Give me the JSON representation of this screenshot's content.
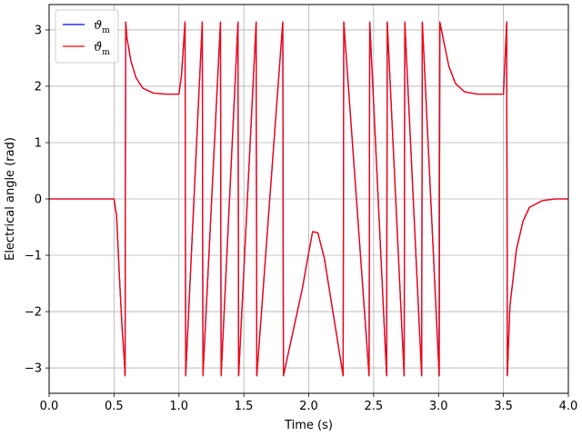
{
  "chart_data": {
    "type": "line",
    "title": "",
    "xlabel": "Time (s)",
    "ylabel": "Electrical angle (rad)",
    "xlim": [
      0,
      4.0
    ],
    "ylim": [
      -3.45,
      3.45
    ],
    "grid": true,
    "legend_position": "top-left",
    "x_ticks": [
      0.0,
      0.5,
      1.0,
      1.5,
      2.0,
      2.5,
      3.0,
      3.5,
      4.0
    ],
    "x_tick_labels": [
      "0.0",
      "0.5",
      "1.0",
      "1.5",
      "2.0",
      "2.5",
      "3.0",
      "3.5",
      "4.0"
    ],
    "y_ticks": [
      -3,
      -2,
      -1,
      0,
      1,
      2,
      3
    ],
    "y_tick_labels": [
      "−3",
      "−2",
      "−1",
      "0",
      "1",
      "2",
      "3"
    ],
    "series": [
      {
        "name": "ϑm",
        "legend_base": "ϑ",
        "legend_sub": "m",
        "color": "#0000ff",
        "x": [
          0.0,
          0.3,
          0.5,
          0.52,
          0.54,
          0.56,
          0.58,
          0.585,
          0.59,
          0.6,
          0.63,
          0.67,
          0.72,
          0.8,
          0.9,
          1.0,
          1.02,
          1.047,
          1.052,
          1.18,
          1.185,
          1.32,
          1.325,
          1.455,
          1.46,
          1.595,
          1.6,
          1.8,
          1.805,
          1.95,
          2.0,
          2.03,
          2.07,
          2.12,
          2.2,
          2.265,
          2.27,
          2.465,
          2.47,
          2.6,
          2.605,
          2.735,
          2.74,
          2.87,
          2.875,
          3.005,
          3.01,
          3.04,
          3.08,
          3.13,
          3.2,
          3.3,
          3.4,
          3.5,
          3.525,
          3.53,
          3.54,
          3.55,
          3.6,
          3.65,
          3.7,
          3.8,
          3.9,
          4.0
        ],
        "y": [
          0.0,
          0.0,
          0.0,
          -0.3,
          -1.3,
          -2.2,
          -2.9,
          -3.14,
          3.14,
          2.85,
          2.45,
          2.15,
          1.97,
          1.88,
          1.86,
          1.86,
          2.2,
          3.14,
          -3.14,
          3.14,
          -3.14,
          3.14,
          -3.14,
          3.14,
          -3.14,
          3.14,
          -3.14,
          3.14,
          -3.14,
          -1.6,
          -0.95,
          -0.58,
          -0.6,
          -1.05,
          -2.2,
          -3.14,
          3.14,
          -3.14,
          3.14,
          -3.14,
          3.14,
          -3.14,
          3.14,
          -3.14,
          3.14,
          -3.14,
          3.14,
          2.8,
          2.35,
          2.05,
          1.9,
          1.86,
          1.86,
          1.86,
          3.14,
          -3.14,
          -2.5,
          -1.9,
          -0.9,
          -0.4,
          -0.15,
          -0.03,
          0.0,
          0.0
        ]
      },
      {
        "name": "ϑ̂m",
        "legend_base": "ϑ̂",
        "legend_sub": "m",
        "color": "#ff0000",
        "x": [
          0.0,
          0.3,
          0.5,
          0.52,
          0.54,
          0.56,
          0.58,
          0.585,
          0.59,
          0.6,
          0.63,
          0.67,
          0.72,
          0.8,
          0.9,
          1.0,
          1.02,
          1.047,
          1.052,
          1.18,
          1.185,
          1.32,
          1.325,
          1.455,
          1.46,
          1.595,
          1.6,
          1.8,
          1.805,
          1.95,
          2.0,
          2.03,
          2.07,
          2.12,
          2.2,
          2.265,
          2.27,
          2.465,
          2.47,
          2.6,
          2.605,
          2.735,
          2.74,
          2.87,
          2.875,
          3.005,
          3.01,
          3.04,
          3.08,
          3.13,
          3.2,
          3.3,
          3.4,
          3.5,
          3.525,
          3.53,
          3.54,
          3.55,
          3.6,
          3.65,
          3.7,
          3.8,
          3.9,
          4.0
        ],
        "y": [
          0.0,
          0.0,
          0.0,
          -0.3,
          -1.3,
          -2.2,
          -2.9,
          -3.14,
          3.14,
          2.85,
          2.45,
          2.15,
          1.97,
          1.88,
          1.86,
          1.86,
          2.2,
          3.14,
          -3.14,
          3.14,
          -3.14,
          3.14,
          -3.14,
          3.14,
          -3.14,
          3.14,
          -3.14,
          3.14,
          -3.14,
          -1.6,
          -0.95,
          -0.58,
          -0.6,
          -1.05,
          -2.2,
          -3.14,
          3.14,
          -3.14,
          3.14,
          -3.14,
          3.14,
          -3.14,
          3.14,
          -3.14,
          3.14,
          -3.14,
          3.14,
          2.8,
          2.35,
          2.05,
          1.9,
          1.86,
          1.86,
          1.86,
          3.14,
          -3.14,
          -2.5,
          -1.9,
          -0.9,
          -0.4,
          -0.15,
          -0.03,
          0.0,
          0.0
        ]
      }
    ]
  }
}
